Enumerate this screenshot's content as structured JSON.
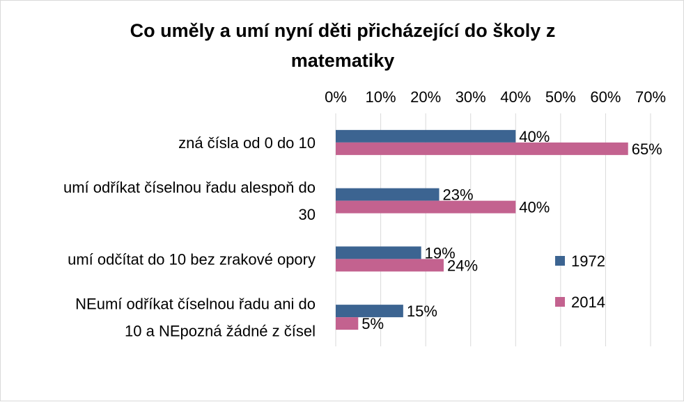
{
  "chart_data": {
    "type": "bar",
    "orientation": "horizontal",
    "title_lines": [
      "Co uměly a umí nyní děti přicházející do školy z",
      "matematiky"
    ],
    "title": "Co uměly a umí nyní děti přicházející do školy z matematiky",
    "categories": [
      {
        "lines": [
          "zná čísla od 0 do 10"
        ]
      },
      {
        "lines": [
          "umí odříkat číselnou řadu alespoň do",
          "30"
        ]
      },
      {
        "lines": [
          "umí odčítat do 10 bez zrakové opory"
        ]
      },
      {
        "lines": [
          "NEumí odříkat číselnou řadu ani do",
          "10 a NEpozná žádné z čísel"
        ]
      }
    ],
    "series": [
      {
        "name": "1972",
        "color": "#3c6491",
        "values": [
          0.4,
          0.23,
          0.19,
          0.15
        ],
        "labels": [
          "40%",
          "23%",
          "19%",
          "15%"
        ]
      },
      {
        "name": "2014",
        "color": "#c3628f",
        "values": [
          0.65,
          0.4,
          0.24,
          0.05
        ],
        "labels": [
          "65%",
          "40%",
          "24%",
          "5%"
        ]
      }
    ],
    "x_axis": {
      "min": 0,
      "max": 0.7,
      "position": "top",
      "ticks": [
        0,
        0.1,
        0.2,
        0.3,
        0.4,
        0.5,
        0.6,
        0.7
      ],
      "tick_labels": [
        "0%",
        "10%",
        "20%",
        "30%",
        "40%",
        "50%",
        "60%",
        "70%"
      ]
    },
    "grid": true,
    "legend": {
      "position": "right"
    }
  }
}
